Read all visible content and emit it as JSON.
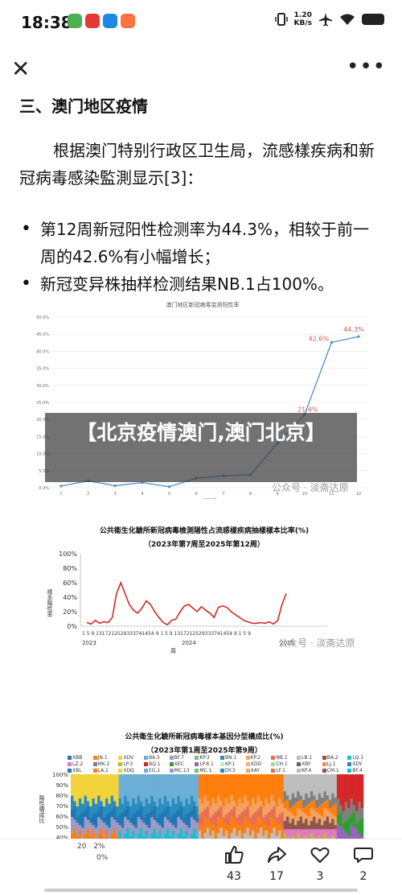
{
  "status_bar": {
    "time": "18:38",
    "speed_value": "1.20",
    "speed_unit": "KB/s",
    "app_icon_colors": [
      "#4caf50",
      "#e53935",
      "#1e88e5",
      "#ff7043"
    ]
  },
  "toolbar": {
    "close_icon": "close-icon",
    "more_icon": "more-icon"
  },
  "article": {
    "section_title": "三、澳门地区疫情",
    "paragraph": "根据澳门特别行政区卫生局，流感樣疾病和新冠病毒感染監測显示[3]：",
    "bullets": [
      "第12周新冠阳性检测率为44.3%，相较于前一周的42.6%有小幅增长；",
      "新冠变异株抽样检测结果NB.1占100%。"
    ]
  },
  "overlay": {
    "title": "【北京疫情澳门,澳门北京】"
  },
  "watermark": "公众号 · 淡斋达原",
  "chart1": {
    "title": "澳门地区新冠病毒监测阳性率",
    "x_label": "2025年",
    "callout_last": "44.3%",
    "callout_prev": "42.6%",
    "callout_mid": "21.4%",
    "y_ticks": [
      "50.0%",
      "45.0%",
      "40.0%",
      "35.0%",
      "30.0%",
      "25.0%",
      "20.0%",
      "15.0%",
      "10.0%",
      "5.0%",
      "0.0%"
    ],
    "accent_color": "#4a90c9",
    "label_color": "#d9534f"
  },
  "chart2": {
    "title": "公共衛生化驗所新冠病毒檢測陽性占流感樣疾病抽樣樣本比率(%)",
    "subtitle": "（2023年第7周至2025年第12周）",
    "y_label": "樣本陽性率",
    "y_ticks": [
      "100%",
      "80%",
      "60%",
      "40%",
      "20%",
      "0%"
    ],
    "x_ticks_text": "1  5  9 1317212529333741454 9  1  5  9 1317212529333741454 9  1  5  9",
    "years": [
      "2023",
      "2024",
      "2025"
    ],
    "x_label": "周",
    "line_color": "#d62728"
  },
  "chart3": {
    "title": "公共衛生化驗所新冠病毒樣本基因分型構成比(%)",
    "subtitle": "（2023年第1周至2025年第9周）",
    "y_label": "陽性構成比",
    "y_ticks": [
      "100%",
      "90%",
      "80%",
      "70%",
      "60%",
      "50%",
      "40%"
    ],
    "legend": [
      "XBB",
      "JN.1",
      "XDV",
      "BA.5",
      "BF.7",
      "KP.3",
      "BN.1",
      "KP.2",
      "NB.1",
      "LB.1",
      "BA.2",
      "LQ.1",
      "LZ.2",
      "MK.2",
      "LP.3",
      "BQ.1",
      "XEC",
      "LP.8.1",
      "KP.1",
      "XDD",
      "CH.1",
      "XBF",
      "LJ.1",
      "XDY",
      "XBL",
      "LA.1",
      "XDQ",
      "EG.1",
      "MC.13",
      "MC.1",
      "DY.3",
      "XAY",
      "LF.1",
      "KP.4",
      "CM.1",
      "BF.4"
    ],
    "colors": [
      "#1f77b4",
      "#ff7f0e",
      "#f2d33b",
      "#6baed6",
      "#9e9ac8",
      "#74c476",
      "#2b8cbe",
      "#f4a261",
      "#e76f51",
      "#bdbdbd",
      "#8c564b",
      "#17becf",
      "#e377c2",
      "#7f7f7f",
      "#bcbd22",
      "#d62728",
      "#2ca02c",
      "#9467bd",
      "#c7e9c0",
      "#fdae6b",
      "#a1d99b",
      "#636363",
      "#fd8d3c",
      "#3182bd"
    ],
    "footer_year": "20",
    "footer_pct": "2%",
    "footer_pct2": "0%"
  },
  "actions": [
    {
      "icon": "thumbs-up-icon",
      "count": "43"
    },
    {
      "icon": "share-icon",
      "count": "17"
    },
    {
      "icon": "heart-icon",
      "count": "3"
    },
    {
      "icon": "comment-icon",
      "count": "2"
    }
  ],
  "chart_data": [
    {
      "type": "line",
      "title": "澳门地区新冠病毒监测阳性率",
      "xlabel": "2025年",
      "x": [
        1,
        2,
        3,
        4,
        5,
        6,
        7,
        8,
        9,
        10,
        11,
        12
      ],
      "series": [
        {
          "values": [
            0.5,
            2.0,
            0.6,
            1.5,
            0.3,
            2.8,
            3.5,
            3.8,
            13.0,
            21.4,
            42.6,
            44.3
          ]
        }
      ],
      "ylim": [
        0,
        50
      ],
      "grid": true
    },
    {
      "type": "line",
      "title": "公共衛生化驗所新冠病毒檢測陽性占流感樣疾病抽樣樣本比率(%)",
      "ylabel": "樣本陽性率",
      "xlabel": "周",
      "series": [
        {
          "values": [
            5,
            3,
            8,
            4,
            6,
            5,
            12,
            45,
            60,
            45,
            30,
            22,
            18,
            25,
            35,
            30,
            20,
            12,
            5,
            2,
            8,
            10,
            20,
            28,
            30,
            25,
            20,
            27,
            22,
            18,
            12,
            26,
            28,
            26,
            20,
            16,
            12,
            8,
            6,
            4,
            4,
            5,
            4,
            6,
            3,
            8,
            30,
            45
          ]
        }
      ],
      "ylim": [
        0,
        100
      ],
      "grid": false
    }
  ]
}
